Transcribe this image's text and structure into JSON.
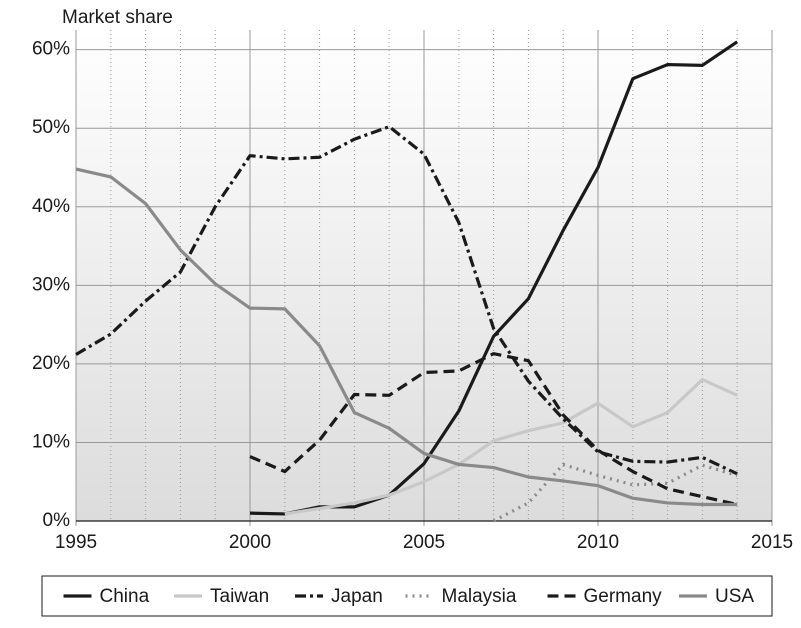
{
  "chart_data": {
    "type": "line",
    "y_label": "Market share",
    "x": [
      1995,
      1996,
      1997,
      1998,
      1999,
      2000,
      2001,
      2002,
      2003,
      2004,
      2005,
      2006,
      2007,
      2008,
      2009,
      2010,
      2011,
      2012,
      2013,
      2014
    ],
    "series": [
      {
        "name": "China",
        "color": "#1a1a1a",
        "dash": "solid",
        "values": [
          null,
          null,
          null,
          null,
          null,
          1.0,
          0.9,
          1.8,
          1.8,
          3.3,
          7.3,
          14,
          23.5,
          28.3,
          37,
          45,
          56.3,
          58.1,
          58,
          61
        ]
      },
      {
        "name": "Taiwan",
        "color": "#c8c8c8",
        "dash": "solid",
        "values": [
          null,
          null,
          null,
          null,
          null,
          null,
          0.9,
          1.6,
          2.3,
          3.3,
          5,
          7.2,
          10.2,
          11.5,
          12.5,
          15,
          12,
          13.8,
          18,
          16
        ]
      },
      {
        "name": "Japan",
        "color": "#1a1a1a",
        "dash": "dashdot",
        "values": [
          21.2,
          23.8,
          28,
          31.7,
          40,
          46.5,
          46.1,
          46.3,
          48.6,
          50.2,
          46.7,
          38,
          24.5,
          17.8,
          13,
          8.8,
          7.6,
          7.5,
          8.1,
          6
        ]
      },
      {
        "name": "Malaysia",
        "color": "#8a8a8a",
        "dash": "dotted",
        "values": [
          null,
          null,
          null,
          null,
          null,
          null,
          null,
          null,
          null,
          null,
          null,
          null,
          0,
          2.3,
          7.2,
          5.8,
          4.6,
          4.8,
          7.1,
          5.8
        ]
      },
      {
        "name": "Germany",
        "color": "#1a1a1a",
        "dash": "dashed",
        "values": [
          null,
          null,
          null,
          null,
          null,
          8.2,
          6.3,
          10.3,
          16.1,
          16,
          18.9,
          19.1,
          21.3,
          20.4,
          13.5,
          9,
          6.3,
          4.1,
          3.1,
          2.1
        ]
      },
      {
        "name": "USA",
        "color": "#8a8a8a",
        "dash": "solid",
        "values": [
          44.8,
          43.8,
          40.4,
          34.5,
          30.2,
          27.1,
          27,
          22.3,
          13.8,
          11.8,
          8.6,
          7.2,
          6.8,
          5.6,
          5.1,
          4.5,
          2.9,
          2.3,
          2.1,
          2.1
        ]
      }
    ],
    "xlim": [
      1995,
      2015
    ],
    "xticks": [
      1995,
      2000,
      2005,
      2010,
      2015
    ],
    "xminorticks": [
      1996,
      1997,
      1998,
      1999,
      2001,
      2002,
      2003,
      2004,
      2006,
      2007,
      2008,
      2009,
      2011,
      2012,
      2013,
      2014
    ],
    "ylim": [
      0,
      62.5
    ],
    "yticks": [
      {
        "value": 0,
        "label": "0%"
      },
      {
        "value": 10,
        "label": "10%"
      },
      {
        "value": 20,
        "label": "20%"
      },
      {
        "value": 30,
        "label": "30%"
      },
      {
        "value": 40,
        "label": "40%"
      },
      {
        "value": 50,
        "label": "50%"
      },
      {
        "value": 60,
        "label": "60%"
      }
    ],
    "grid": true,
    "legend": "bottom"
  }
}
